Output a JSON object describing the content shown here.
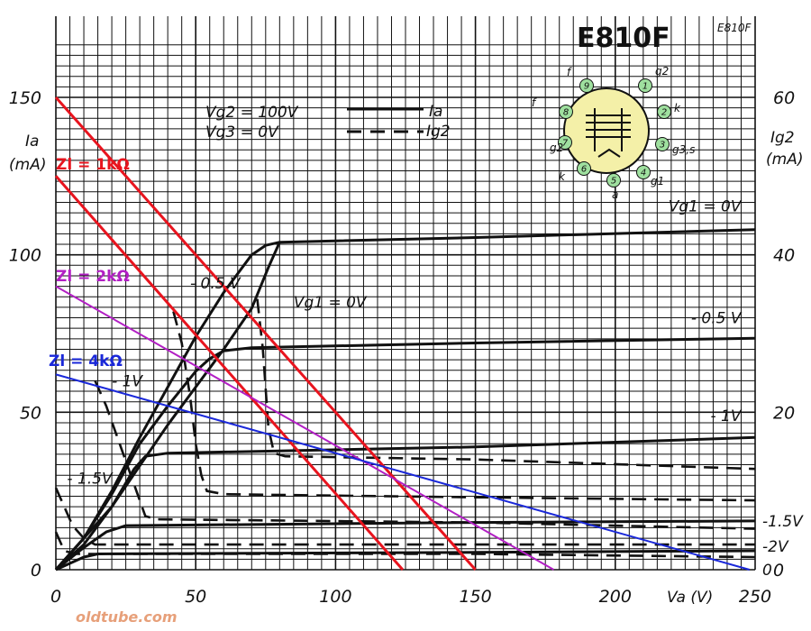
{
  "chart_data": {
    "type": "line",
    "title": "E810F",
    "code": "E810F",
    "conditions": [
      "Vg2 = 100V",
      "Vg3 = 0V"
    ],
    "legend": [
      {
        "label": "Ia",
        "style": "solid"
      },
      {
        "label": "Ig2",
        "style": "dashed"
      }
    ],
    "xaxis": {
      "label": "Va (V)",
      "range": [
        0,
        250
      ],
      "ticks": [
        "0",
        "50",
        "100",
        "150",
        "200",
        "250"
      ]
    },
    "yaxis_left": {
      "label_line1": "Ia",
      "label_line2": "(mA)",
      "range": [
        0,
        150
      ],
      "ticks": [
        "0",
        "50",
        "100",
        "150"
      ]
    },
    "yaxis_right": {
      "label_line1": "Ig2",
      "label_line2": "(mA)",
      "range": [
        0,
        60
      ],
      "ticks": [
        "0",
        "20",
        "40",
        "60"
      ]
    },
    "grid": true,
    "ia_curves": [
      {
        "vg1": "0V",
        "points": [
          [
            0,
            0
          ],
          [
            10,
            10
          ],
          [
            20,
            25
          ],
          [
            30,
            42
          ],
          [
            40,
            58
          ],
          [
            50,
            74
          ],
          [
            60,
            88
          ],
          [
            70,
            100
          ],
          [
            75,
            103
          ],
          [
            80,
            104
          ],
          [
            150,
            105.5
          ],
          [
            250,
            108
          ]
        ]
      },
      {
        "vg1": "-0.5V",
        "points": [
          [
            0,
            0
          ],
          [
            10,
            10
          ],
          [
            20,
            24
          ],
          [
            30,
            40
          ],
          [
            40,
            52
          ],
          [
            50,
            63
          ],
          [
            55,
            67
          ],
          [
            60,
            69.5
          ],
          [
            70,
            70.5
          ],
          [
            150,
            72
          ],
          [
            250,
            73.5
          ]
        ]
      },
      {
        "vg1": "-1V",
        "points": [
          [
            0,
            0
          ],
          [
            10,
            8
          ],
          [
            20,
            20
          ],
          [
            28,
            32
          ],
          [
            32,
            36
          ],
          [
            40,
            37
          ],
          [
            150,
            39
          ],
          [
            250,
            42
          ]
        ]
      },
      {
        "vg1": "-1.5V",
        "points": [
          [
            0,
            0
          ],
          [
            10,
            7
          ],
          [
            18,
            12
          ],
          [
            25,
            14
          ],
          [
            150,
            15
          ],
          [
            250,
            15.5
          ]
        ]
      },
      {
        "vg1": "-2V",
        "points": [
          [
            0,
            0
          ],
          [
            10,
            4
          ],
          [
            15,
            5
          ],
          [
            150,
            5.5
          ],
          [
            250,
            6
          ]
        ]
      },
      {
        "vg1": "",
        "points": [
          [
            0,
            0
          ],
          [
            10,
            10
          ],
          [
            20,
            20
          ],
          [
            30,
            33
          ],
          [
            40,
            46
          ],
          [
            50,
            58
          ],
          [
            60,
            70
          ],
          [
            70,
            83
          ],
          [
            76,
            96
          ],
          [
            80,
            104
          ]
        ]
      }
    ],
    "ig2_curves": [
      {
        "vg1": "0V",
        "points": [
          [
            72,
            86
          ],
          [
            74,
            70
          ],
          [
            76,
            45
          ],
          [
            78,
            37
          ],
          [
            82,
            36
          ],
          [
            150,
            35
          ],
          [
            250,
            32
          ]
        ]
      },
      {
        "vg1": "-0.5V",
        "points": [
          [
            42,
            82
          ],
          [
            45,
            72
          ],
          [
            48,
            55
          ],
          [
            50,
            40
          ],
          [
            52,
            30
          ],
          [
            54,
            25
          ],
          [
            60,
            24
          ],
          [
            150,
            23
          ],
          [
            250,
            22
          ]
        ]
      },
      {
        "vg1": "-1V",
        "points": [
          [
            14,
            60
          ],
          [
            18,
            52
          ],
          [
            22,
            42
          ],
          [
            26,
            32
          ],
          [
            30,
            22
          ],
          [
            32,
            17
          ],
          [
            36,
            16
          ],
          [
            150,
            15
          ],
          [
            250,
            13
          ]
        ]
      },
      {
        "vg1": "-1.5V",
        "points": [
          [
            0,
            26
          ],
          [
            3,
            20
          ],
          [
            6,
            14
          ],
          [
            10,
            10
          ],
          [
            14,
            8
          ],
          [
            150,
            8
          ],
          [
            250,
            8
          ]
        ]
      },
      {
        "vg1": "-2V",
        "points": [
          [
            0,
            12
          ],
          [
            3,
            6
          ],
          [
            7,
            5
          ],
          [
            150,
            5
          ],
          [
            250,
            4
          ]
        ]
      }
    ],
    "load_lines": [
      {
        "label": "Zl = 1kΩ",
        "color": "#e8141e",
        "points": [
          [
            0,
            150
          ],
          [
            150,
            0
          ]
        ]
      },
      {
        "label": "",
        "color": "#e8141e",
        "points": [
          [
            0,
            125
          ],
          [
            124,
            0
          ]
        ]
      },
      {
        "label": "Zl = 2kΩ",
        "color": "#b21fc4",
        "points": [
          [
            0,
            90
          ],
          [
            178,
            0
          ]
        ]
      },
      {
        "label": "Zl = 4kΩ",
        "color": "#1a28d9",
        "points": [
          [
            0,
            62
          ],
          [
            248,
            0
          ]
        ]
      }
    ],
    "curve_labels": [
      {
        "text": "Vg1 = 0V",
        "x": 245,
        "y": 115.5
      },
      {
        "text": "Vg1 = 0V",
        "x": 85,
        "y": 85
      },
      {
        "text": "- 0.5 V",
        "x": 48,
        "y": 91
      },
      {
        "text": "- 0.5 V",
        "x": 245,
        "y": 80
      },
      {
        "text": "- 1V",
        "x": 20,
        "y": 60
      },
      {
        "text": "- 1V",
        "x": 245,
        "y": 49
      },
      {
        "text": "- 1.5V",
        "x": 4,
        "y": 29
      },
      {
        "text": "-1.5V",
        "x": 257,
        "y": 15.5
      },
      {
        "text": "-2V",
        "x": 257,
        "y": 7.5
      },
      {
        "text": "0",
        "x": 257,
        "y": 0
      }
    ],
    "tube_pins": [
      "1",
      "2",
      "3",
      "4",
      "5",
      "6",
      "7",
      "8",
      "9"
    ],
    "pin_labels": [
      "g2",
      "k",
      "g3,s",
      "g1",
      "a",
      "k",
      "g2",
      "f",
      "f"
    ]
  },
  "watermark": "oldtube.com",
  "colors": {
    "grid": "#111111",
    "curve": "#111111",
    "tube_bg": "#f4f0a8",
    "pin_fill": "#9fe09f"
  }
}
